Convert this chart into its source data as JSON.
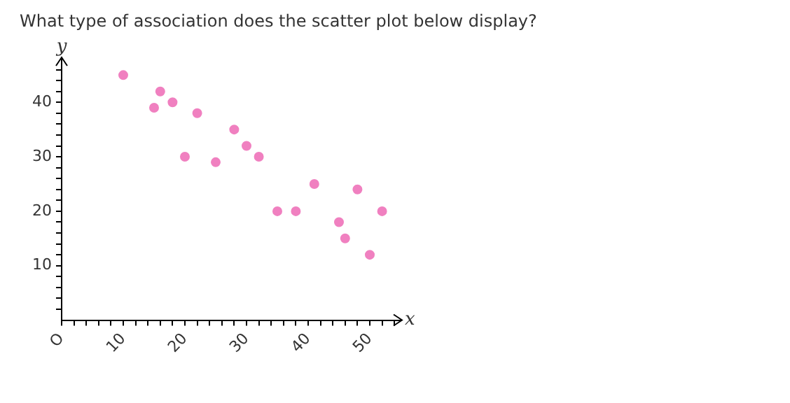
{
  "chart_data": {
    "type": "scatter",
    "title": "What type of association does the scatter plot below display?",
    "xlabel": "x",
    "ylabel": "y",
    "series": [
      {
        "color": "#f080c0",
        "x": [
          10,
          15,
          16,
          18,
          20,
          22,
          25,
          28,
          30,
          32,
          35,
          38,
          41,
          45,
          46,
          48,
          50,
          52
        ],
        "values": [
          45,
          39,
          42,
          40,
          30,
          38,
          29,
          35,
          32,
          30,
          20,
          20,
          25,
          18,
          15,
          24,
          12,
          20
        ]
      }
    ],
    "xlim": [
      0,
      55
    ],
    "ylim": [
      0,
      48
    ],
    "xticks": [
      {
        "value": 0,
        "label": "O"
      },
      {
        "value": 2,
        "label": null
      },
      {
        "value": 4,
        "label": null
      },
      {
        "value": 6,
        "label": null
      },
      {
        "value": 8,
        "label": null
      },
      10,
      {
        "value": 12,
        "label": null
      },
      {
        "value": 14,
        "label": null
      },
      {
        "value": 16,
        "label": null
      },
      {
        "value": 18,
        "label": null
      },
      20,
      {
        "value": 22,
        "label": null
      },
      {
        "value": 24,
        "label": null
      },
      {
        "value": 26,
        "label": null
      },
      {
        "value": 28,
        "label": null
      },
      30,
      {
        "value": 32,
        "label": null
      },
      {
        "value": 34,
        "label": null
      },
      {
        "value": 36,
        "label": null
      },
      {
        "value": 38,
        "label": null
      },
      40,
      {
        "value": 42,
        "label": null
      },
      {
        "value": 44,
        "label": null
      },
      {
        "value": 46,
        "label": null
      },
      {
        "value": 48,
        "label": null
      },
      50,
      {
        "value": 52,
        "label": null
      },
      {
        "value": 54,
        "label": null
      }
    ],
    "yticks": [
      {
        "value": 2,
        "label": null
      },
      {
        "value": 4,
        "label": null
      },
      {
        "value": 6,
        "label": null
      },
      {
        "value": 8,
        "label": null
      },
      10,
      {
        "value": 12,
        "label": null
      },
      {
        "value": 14,
        "label": null
      },
      {
        "value": 16,
        "label": null
      },
      {
        "value": 18,
        "label": null
      },
      20,
      {
        "value": 22,
        "label": null
      },
      {
        "value": 24,
        "label": null
      },
      {
        "value": 26,
        "label": null
      },
      {
        "value": 28,
        "label": null
      },
      30,
      {
        "value": 32,
        "label": null
      },
      {
        "value": 34,
        "label": null
      },
      {
        "value": 36,
        "label": null
      },
      {
        "value": 38,
        "label": null
      },
      40,
      {
        "value": 42,
        "label": null
      },
      {
        "value": 44,
        "label": null
      },
      {
        "value": 46,
        "label": null
      }
    ],
    "grid": false,
    "legend": false,
    "marker": "circle"
  }
}
